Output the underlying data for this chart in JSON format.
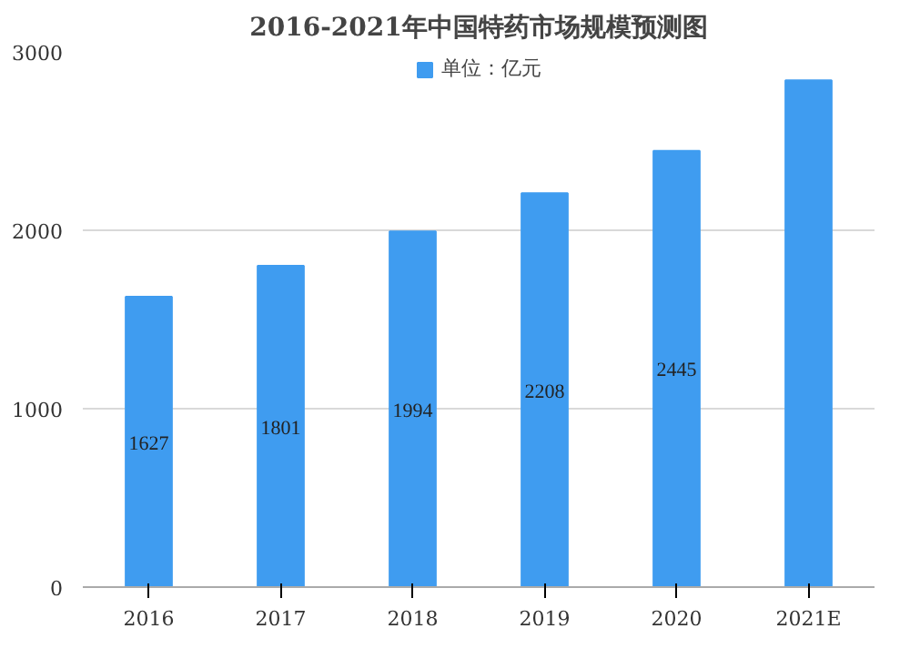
{
  "chart_data": {
    "type": "bar",
    "title": "2016-2021年中国特药市场规模预测图",
    "categories": [
      "2016",
      "2017",
      "2018",
      "2019",
      "2020",
      "2021E"
    ],
    "series": [
      {
        "name": "单位：亿元",
        "color": "#3f9cf0",
        "values": [
          1627,
          1801,
          1994,
          2208,
          2445,
          2840
        ],
        "value_labels": [
          "1627",
          "1801",
          "1994",
          "2208",
          "2445",
          null
        ]
      }
    ],
    "ylim": [
      0,
      3000
    ],
    "yticks": [
      0,
      1000,
      2000,
      3000
    ],
    "grid": "y",
    "legend": "top"
  }
}
